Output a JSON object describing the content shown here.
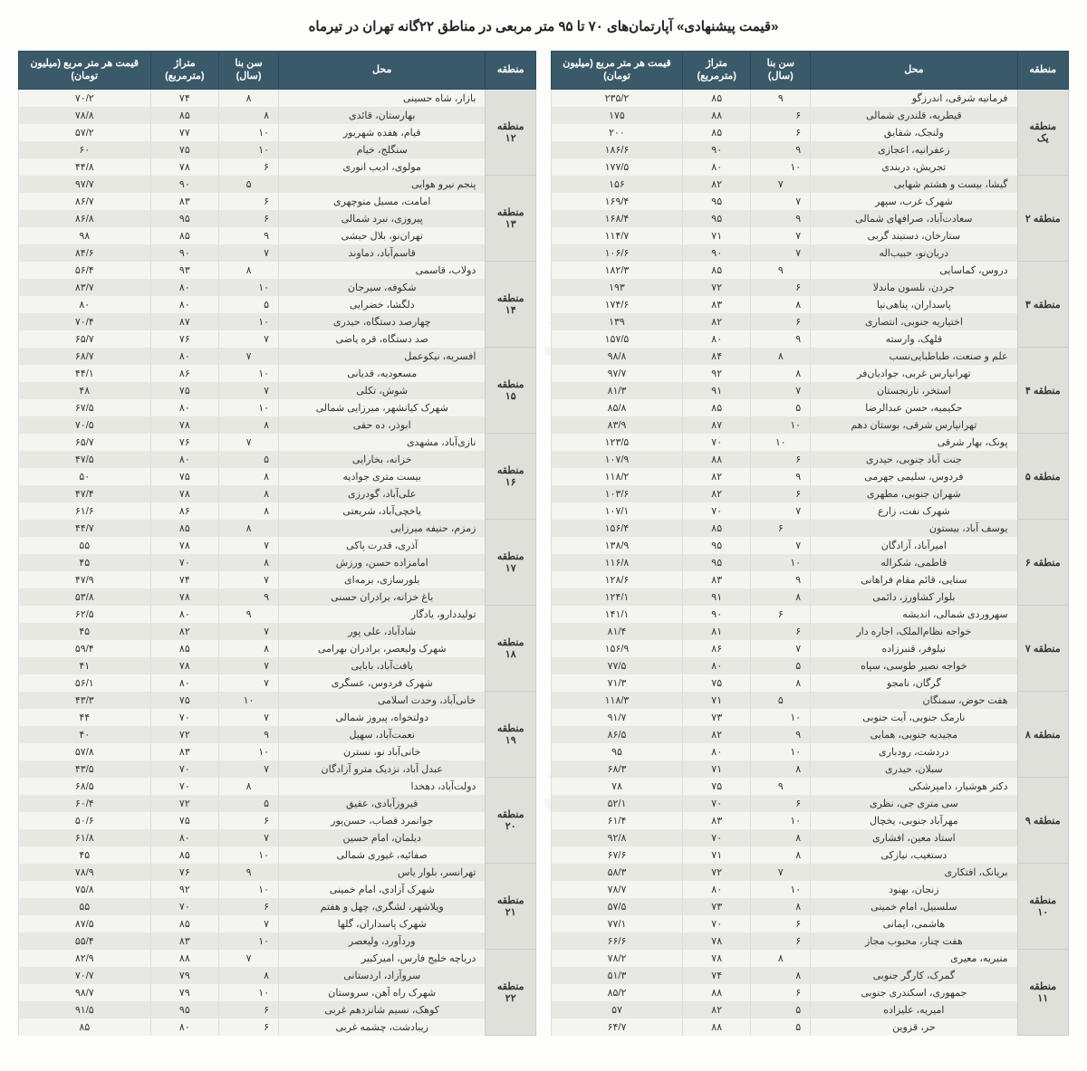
{
  "title": "«قیمت پیشنهادی» آپارتمان‌های ۷۰ تا ۹۵ متر مربعی در مناطق ۲۲گانه تهران در تیرماه",
  "headers": {
    "region": "منطقه",
    "location": "محل",
    "age": "سن بنا\n(سال)",
    "area": "متراژ\n(مترمربع)",
    "price": "قیمت هر متر مربع\n(میلیون تومان)"
  },
  "colors": {
    "header_bg": "#3a5a6a",
    "header_fg": "#ffffff",
    "row_odd": "#f4f4f0",
    "row_even": "#e8e8e2",
    "region_bg": "#e0e0da"
  },
  "right_table": [
    {
      "region": "منطقه یک",
      "rows": [
        {
          "loc": "فرمانیه شرقی، اندرزگو",
          "age": "۹",
          "area": "۸۵",
          "price": "۲۳۵/۲"
        },
        {
          "loc": "قیطریه، قلندری شمالی",
          "age": "۶",
          "area": "۸۸",
          "price": "۱۷۵"
        },
        {
          "loc": "ولنجک، شقایق",
          "age": "۶",
          "area": "۸۵",
          "price": "۲۰۰"
        },
        {
          "loc": "زعفرانیه، اعجازی",
          "age": "۹",
          "area": "۹۰",
          "price": "۱۸۶/۶"
        },
        {
          "loc": "تجریش، دربندی",
          "age": "۱۰",
          "area": "۸۰",
          "price": "۱۷۷/۵"
        }
      ]
    },
    {
      "region": "منطقه ۲",
      "rows": [
        {
          "loc": "گیشا، بیست و هشتم شهابی",
          "age": "۷",
          "area": "۸۲",
          "price": "۱۵۶"
        },
        {
          "loc": "شهرک غرب، سپهر",
          "age": "۷",
          "area": "۹۵",
          "price": "۱۶۹/۴"
        },
        {
          "loc": "سعادت‌آباد، صرافهای شمالی",
          "age": "۹",
          "area": "۹۵",
          "price": "۱۶۸/۴"
        },
        {
          "loc": "ستارخان، دستبند گربی",
          "age": "۷",
          "area": "۷۱",
          "price": "۱۱۴/۷"
        },
        {
          "loc": "دریان‌نو، حبیب‌اله",
          "age": "۷",
          "area": "۹۰",
          "price": "۱۰۶/۶"
        }
      ]
    },
    {
      "region": "منطقه ۳",
      "rows": [
        {
          "loc": "دروس، کماسایی",
          "age": "۹",
          "area": "۸۵",
          "price": "۱۸۲/۳"
        },
        {
          "loc": "جردن، نلسون ماندلا",
          "age": "۶",
          "area": "۷۲",
          "price": "۱۹۳"
        },
        {
          "loc": "پاسداران، پناهی‌نیا",
          "age": "۸",
          "area": "۸۳",
          "price": "۱۷۴/۶"
        },
        {
          "loc": "اختیاریه جنوبی، انتصاری",
          "age": "۶",
          "area": "۸۲",
          "price": "۱۳۹"
        },
        {
          "loc": "قلهک، وارسته",
          "age": "۹",
          "area": "۸۰",
          "price": "۱۵۷/۵"
        }
      ]
    },
    {
      "region": "منطقه ۴",
      "rows": [
        {
          "loc": "علم و صنعت، طباطبایی‌نسب",
          "age": "۸",
          "area": "۸۴",
          "price": "۹۸/۸"
        },
        {
          "loc": "تهرانپارس غربی، جوادیان‌فر",
          "age": "۸",
          "area": "۹۲",
          "price": "۹۷/۷"
        },
        {
          "loc": "استخر، نارنجستان",
          "age": "۷",
          "area": "۹۱",
          "price": "۸۱/۳"
        },
        {
          "loc": "حکیمیه، حسن عبدالرضا",
          "age": "۵",
          "area": "۸۵",
          "price": "۸۵/۸"
        },
        {
          "loc": "تهرانپارس شرقی، بوستان دهم",
          "age": "۱۰",
          "area": "۸۷",
          "price": "۸۳/۹"
        }
      ]
    },
    {
      "region": "منطقه ۵",
      "rows": [
        {
          "loc": "پونک، بهار شرقی",
          "age": "۱۰",
          "area": "۷۰",
          "price": "۱۲۳/۵"
        },
        {
          "loc": "جنت آباد جنوبی، حیدری",
          "age": "۶",
          "area": "۸۸",
          "price": "۱۰۷/۹"
        },
        {
          "loc": "فردوس، سلیمی جهرمی",
          "age": "۹",
          "area": "۸۲",
          "price": "۱۱۸/۲"
        },
        {
          "loc": "شهران جنوبی، مطهری",
          "age": "۶",
          "area": "۸۲",
          "price": "۱۰۳/۶"
        },
        {
          "loc": "شهرک نفت، زارع",
          "age": "۷",
          "area": "۷۰",
          "price": "۱۰۷/۱"
        }
      ]
    },
    {
      "region": "منطقه ۶",
      "rows": [
        {
          "loc": "یوسف آباد، بیستون",
          "age": "۶",
          "area": "۸۵",
          "price": "۱۵۶/۴"
        },
        {
          "loc": "امیرآباد، آزادگان",
          "age": "۷",
          "area": "۹۵",
          "price": "۱۳۸/۹"
        },
        {
          "loc": "فاطمی، شکراله",
          "age": "۱۰",
          "area": "۹۵",
          "price": "۱۱۶/۸"
        },
        {
          "loc": "سنایی، قائم مقام فراهانی",
          "age": "۹",
          "area": "۸۳",
          "price": "۱۲۸/۶"
        },
        {
          "loc": "بلوار کشاورز، دائمی",
          "age": "۸",
          "area": "۹۱",
          "price": "۱۲۴/۱"
        }
      ]
    },
    {
      "region": "منطقه ۷",
      "rows": [
        {
          "loc": "سهروردی شمالی، اندیشه",
          "age": "۶",
          "area": "۹۰",
          "price": "۱۴۱/۱"
        },
        {
          "loc": "خواجه نظام‌الملک، اجاره دار",
          "age": "۶",
          "area": "۸۱",
          "price": "۸۱/۴"
        },
        {
          "loc": "نیلوفر، قنبرزاده",
          "age": "۷",
          "area": "۸۶",
          "price": "۱۵۶/۹"
        },
        {
          "loc": "خواجه نصیر طوسی، سپاه",
          "age": "۵",
          "area": "۸۰",
          "price": "۷۷/۵"
        },
        {
          "loc": "گرگان، نامجو",
          "age": "۸",
          "area": "۷۵",
          "price": "۷۱/۳"
        }
      ]
    },
    {
      "region": "منطقه ۸",
      "rows": [
        {
          "loc": "هفت حوض، سمنگان",
          "age": "۵",
          "area": "۷۱",
          "price": "۱۱۸/۳"
        },
        {
          "loc": "نارمک جنوبی، آیت جنوبی",
          "age": "۱۰",
          "area": "۷۳",
          "price": "۹۱/۷"
        },
        {
          "loc": "مجیدیه جنوبی، همایی",
          "age": "۹",
          "area": "۸۲",
          "price": "۸۶/۵"
        },
        {
          "loc": "دردشت، رودباری",
          "age": "۱۰",
          "area": "۸۰",
          "price": "۹۵"
        },
        {
          "loc": "سبلان، حیدری",
          "age": "۸",
          "area": "۷۱",
          "price": "۶۸/۳"
        }
      ]
    },
    {
      "region": "منطقه ۹",
      "rows": [
        {
          "loc": "دکتر هوشیار، دامپزشکی",
          "age": "۹",
          "area": "۷۵",
          "price": "۷۸"
        },
        {
          "loc": "سی متری جی، نظری",
          "age": "۶",
          "area": "۷۰",
          "price": "۵۲/۱"
        },
        {
          "loc": "مهرآباد جنوبی، یخچال",
          "age": "۱۰",
          "area": "۸۳",
          "price": "۶۱/۴"
        },
        {
          "loc": "استاد معین، افشاری",
          "age": "۸",
          "area": "۷۰",
          "price": "۹۲/۸"
        },
        {
          "loc": "دستغیب، نیازکی",
          "age": "۸",
          "area": "۷۱",
          "price": "۶۷/۶"
        }
      ]
    },
    {
      "region": "منطقه ۱۰",
      "rows": [
        {
          "loc": "بریانک، افتکاری",
          "age": "۷",
          "area": "۷۲",
          "price": "۵۸/۳"
        },
        {
          "loc": "زنجان، بهنود",
          "age": "۱۰",
          "area": "۸۰",
          "price": "۷۸/۷"
        },
        {
          "loc": "سلسبیل، امام خمینی",
          "age": "۸",
          "area": "۷۳",
          "price": "۵۷/۵"
        },
        {
          "loc": "هاشمی، ایمانی",
          "age": "۶",
          "area": "۷۰",
          "price": "۷۷/۱"
        },
        {
          "loc": "هفت چنار، محبوب مجاز",
          "age": "۶",
          "area": "۷۸",
          "price": "۶۶/۶"
        }
      ]
    },
    {
      "region": "منطقه ۱۱",
      "rows": [
        {
          "loc": "منیریه، معیری",
          "age": "۸",
          "area": "۷۸",
          "price": "۷۸/۲"
        },
        {
          "loc": "گمرک، کارگر جنوبی",
          "age": "۸",
          "area": "۷۴",
          "price": "۵۱/۳"
        },
        {
          "loc": "جمهوری، اسکندری جنوبی",
          "age": "۶",
          "area": "۸۸",
          "price": "۸۵/۲"
        },
        {
          "loc": "امیریه، علیزاده",
          "age": "۵",
          "area": "۸۲",
          "price": "۵۷"
        },
        {
          "loc": "حر، قزوین",
          "age": "۵",
          "area": "۸۸",
          "price": "۶۴/۷"
        }
      ]
    }
  ],
  "left_table": [
    {
      "region": "منطقه ۱۲",
      "rows": [
        {
          "loc": "بازار، شاه حسینی",
          "age": "۸",
          "area": "۷۴",
          "price": "۷۰/۲"
        },
        {
          "loc": "بهارستان، قائدی",
          "age": "۸",
          "area": "۸۵",
          "price": "۷۸/۸"
        },
        {
          "loc": "قیام، هفده شهریور",
          "age": "۱۰",
          "area": "۷۷",
          "price": "۵۷/۲"
        },
        {
          "loc": "سنگلج، خیام",
          "age": "۱۰",
          "area": "۷۵",
          "price": "۶۰"
        },
        {
          "loc": "مولوی، ادیب انوری",
          "age": "۶",
          "area": "۷۸",
          "price": "۴۴/۸"
        }
      ]
    },
    {
      "region": "منطقه ۱۳",
      "rows": [
        {
          "loc": "پنجم نیرو هوایی",
          "age": "۵",
          "area": "۹۰",
          "price": "۹۷/۷"
        },
        {
          "loc": "امامت، مسیل منوچهری",
          "age": "۶",
          "area": "۸۳",
          "price": "۸۶/۷"
        },
        {
          "loc": "پیروزی، نبرد شمالی",
          "age": "۶",
          "area": "۹۵",
          "price": "۸۶/۸"
        },
        {
          "loc": "تهران‌نو، بلال حبشی",
          "age": "۹",
          "area": "۸۵",
          "price": "۹۸"
        },
        {
          "loc": "قاسم‌آباد، دماوند",
          "age": "۷",
          "area": "۹۰",
          "price": "۸۴/۶"
        }
      ]
    },
    {
      "region": "منطقه ۱۴",
      "rows": [
        {
          "loc": "دولاب، قاسمی",
          "age": "۸",
          "area": "۹۳",
          "price": "۵۶/۴"
        },
        {
          "loc": "شکوفه، سیرجان",
          "age": "۱۰",
          "area": "۸۰",
          "price": "۸۳/۷"
        },
        {
          "loc": "دلگشا، خضرایی",
          "age": "۵",
          "area": "۸۰",
          "price": "۸۰"
        },
        {
          "loc": "چهارصد دستگاه، حیدری",
          "age": "۱۰",
          "area": "۸۷",
          "price": "۷۰/۴"
        },
        {
          "loc": "صد دستگاه، قره یاضی",
          "age": "۷",
          "area": "۷۶",
          "price": "۶۵/۷"
        }
      ]
    },
    {
      "region": "منطقه ۱۵",
      "rows": [
        {
          "loc": "افسریه، نیکوعمل",
          "age": "۷",
          "area": "۸۰",
          "price": "۶۸/۷"
        },
        {
          "loc": "مسعودیه، قدیانی",
          "age": "۱۰",
          "area": "۸۶",
          "price": "۴۴/۱"
        },
        {
          "loc": "شوش، تکلی",
          "age": "۷",
          "area": "۷۵",
          "price": "۴۸"
        },
        {
          "loc": "شهرک کیانشهر، میرزایی شمالی",
          "age": "۱۰",
          "area": "۸۰",
          "price": "۶۷/۵"
        },
        {
          "loc": "ابوذر، ده حقی",
          "age": "۸",
          "area": "۷۸",
          "price": "۷۰/۵"
        }
      ]
    },
    {
      "region": "منطقه ۱۶",
      "rows": [
        {
          "loc": "نازی‌آباد، مشهدی",
          "age": "۷",
          "area": "۷۶",
          "price": "۶۵/۷"
        },
        {
          "loc": "خزانه، بخارایی",
          "age": "۵",
          "area": "۸۰",
          "price": "۴۷/۵"
        },
        {
          "loc": "بیست متری جوادیه",
          "age": "۸",
          "area": "۷۵",
          "price": "۵۰"
        },
        {
          "loc": "علی‌آباد، گودرزی",
          "age": "۸",
          "area": "۷۸",
          "price": "۴۷/۴"
        },
        {
          "loc": "یاخچی‌آباد، شریعتی",
          "age": "۸",
          "area": "۸۶",
          "price": "۶۱/۶"
        }
      ]
    },
    {
      "region": "منطقه ۱۷",
      "rows": [
        {
          "loc": "زمزم، حنیفه میرزایی",
          "age": "۸",
          "area": "۸۵",
          "price": "۴۴/۷"
        },
        {
          "loc": "آذری، قدرت پاکی",
          "age": "۷",
          "area": "۷۸",
          "price": "۵۵"
        },
        {
          "loc": "امامزاده حسن، ورزش",
          "age": "۸",
          "area": "۷۰",
          "price": "۴۵"
        },
        {
          "loc": "بلورسازی، بزمه‌ای",
          "age": "۷",
          "area": "۷۴",
          "price": "۴۷/۹"
        },
        {
          "loc": "باغ خزانه، برادران حسنی",
          "age": "۹",
          "area": "۷۸",
          "price": "۵۳/۸"
        }
      ]
    },
    {
      "region": "منطقه ۱۸",
      "rows": [
        {
          "loc": "تولیددارو، یادگار",
          "age": "۹",
          "area": "۸۰",
          "price": "۶۲/۵"
        },
        {
          "loc": "شادآباد، علی پور",
          "age": "۷",
          "area": "۸۲",
          "price": "۴۵"
        },
        {
          "loc": "شهرک ولیعصر، برادران بهرامی",
          "age": "۸",
          "area": "۸۵",
          "price": "۵۹/۴"
        },
        {
          "loc": "یافت‌آباد، بابایی",
          "age": "۷",
          "area": "۷۸",
          "price": "۴۱"
        },
        {
          "loc": "شهرک فردوس، عسگری",
          "age": "۷",
          "area": "۸۰",
          "price": "۵۶/۱"
        }
      ]
    },
    {
      "region": "منطقه ۱۹",
      "rows": [
        {
          "loc": "خانی‌آباد، وحدت اسلامی",
          "age": "۱۰",
          "area": "۷۵",
          "price": "۴۳/۳"
        },
        {
          "loc": "دولتخواه، پیروز شمالی",
          "age": "۷",
          "area": "۷۰",
          "price": "۴۴"
        },
        {
          "loc": "نعمت‌آباد، سهیل",
          "age": "۹",
          "area": "۷۲",
          "price": "۴۰"
        },
        {
          "loc": "خانی‌آباد نو، نسترن",
          "age": "۱۰",
          "area": "۸۳",
          "price": "۵۷/۸"
        },
        {
          "loc": "عبدل آباد، نزدیک مترو آزادگان",
          "age": "۷",
          "area": "۷۰",
          "price": "۴۳/۵"
        }
      ]
    },
    {
      "region": "منطقه ۲۰",
      "rows": [
        {
          "loc": "دولت‌آباد، دهخدا",
          "age": "۸",
          "area": "۷۰",
          "price": "۶۸/۵"
        },
        {
          "loc": "فیروزآبادی، عقیق",
          "age": "۵",
          "area": "۷۲",
          "price": "۶۰/۴"
        },
        {
          "loc": "جوانمرد قصاب، حسن‌پور",
          "age": "۶",
          "area": "۷۵",
          "price": "۵۰/۶"
        },
        {
          "loc": "دیلمان، امام حسین",
          "age": "۷",
          "area": "۸۰",
          "price": "۶۱/۸"
        },
        {
          "loc": "صفائیه، غیوری شمالی",
          "age": "۱۰",
          "area": "۸۵",
          "price": "۴۵"
        }
      ]
    },
    {
      "region": "منطقه ۲۱",
      "rows": [
        {
          "loc": "تهرانسر، بلوار یاس",
          "age": "۹",
          "area": "۷۶",
          "price": "۷۸/۹"
        },
        {
          "loc": "شهرک آزادی، امام خمینی",
          "age": "۱۰",
          "area": "۹۲",
          "price": "۷۵/۸"
        },
        {
          "loc": "ویلاشهر، لشگری، چهل و هفتم",
          "age": "۶",
          "area": "۷۰",
          "price": "۵۵"
        },
        {
          "loc": "شهرک پاسداران، گلها",
          "age": "۷",
          "area": "۸۵",
          "price": "۸۷/۵"
        },
        {
          "loc": "وردآورد، ولیعصر",
          "age": "۱۰",
          "area": "۸۳",
          "price": "۵۵/۴"
        }
      ]
    },
    {
      "region": "منطقه ۲۲",
      "rows": [
        {
          "loc": "دریاچه خلیج فارس، امیرکبیر",
          "age": "۷",
          "area": "۸۸",
          "price": "۸۲/۹"
        },
        {
          "loc": "سروآزاد، اردستانی",
          "age": "۸",
          "area": "۷۹",
          "price": "۷۰/۷"
        },
        {
          "loc": "شهرک راه آهن، سروستان",
          "age": "۱۰",
          "area": "۷۹",
          "price": "۹۸/۷"
        },
        {
          "loc": "کوهک، نسیم شانزدهم غربی",
          "age": "۶",
          "area": "۹۵",
          "price": "۹۱/۵"
        },
        {
          "loc": "زیبادشت، چشمه غربی",
          "age": "۶",
          "area": "۸۰",
          "price": "۸۵"
        }
      ]
    }
  ]
}
